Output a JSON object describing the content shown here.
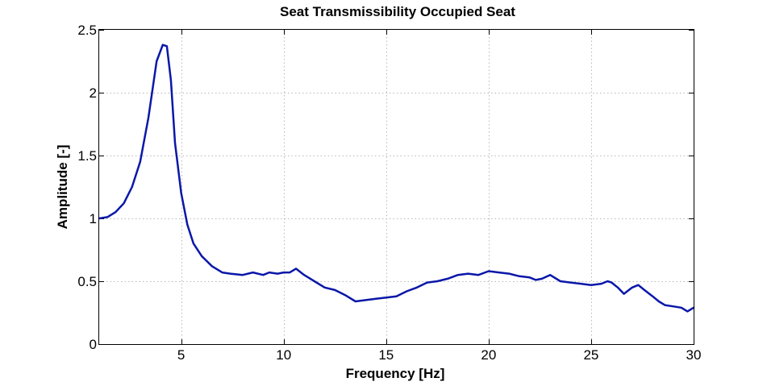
{
  "chart_data": {
    "type": "line",
    "title": "Seat Transmissibility Occupied Seat",
    "xlabel": "Frequency [Hz]",
    "ylabel": "Amplitude [-]",
    "xlim": [
      1,
      30
    ],
    "ylim": [
      0,
      2.5
    ],
    "xticks": [
      5,
      10,
      15,
      20,
      25,
      30
    ],
    "xtick_labels": [
      "5",
      "10",
      "15",
      "20",
      "25",
      "30"
    ],
    "yticks": [
      0,
      0.5,
      1,
      1.5,
      2,
      2.5
    ],
    "ytick_labels": [
      "0",
      "0.5",
      "1",
      "1.5",
      "2",
      "2.5"
    ],
    "grid": true,
    "legend": "none",
    "series": [
      {
        "color": "#0a17a8",
        "x": [
          1.0,
          1.4,
          1.8,
          2.2,
          2.6,
          3.0,
          3.4,
          3.8,
          4.1,
          4.3,
          4.5,
          4.7,
          5.0,
          5.3,
          5.6,
          6.0,
          6.5,
          7.0,
          7.4,
          8.0,
          8.5,
          9.0,
          9.3,
          9.7,
          10.0,
          10.3,
          10.6,
          11.0,
          11.5,
          12.0,
          12.5,
          13.0,
          13.5,
          14.0,
          14.5,
          15.0,
          15.5,
          16.0,
          16.5,
          17.0,
          17.5,
          18.0,
          18.5,
          19.0,
          19.5,
          20.0,
          20.5,
          21.0,
          21.5,
          22.0,
          22.3,
          22.6,
          23.0,
          23.5,
          24.0,
          24.5,
          25.0,
          25.5,
          25.8,
          26.0,
          26.3,
          26.6,
          27.0,
          27.3,
          27.6,
          28.0,
          28.3,
          28.6,
          29.0,
          29.4,
          29.7,
          30.0
        ],
        "y": [
          1.0,
          1.01,
          1.05,
          1.12,
          1.25,
          1.45,
          1.8,
          2.25,
          2.38,
          2.37,
          2.1,
          1.6,
          1.2,
          0.95,
          0.8,
          0.7,
          0.62,
          0.57,
          0.56,
          0.55,
          0.57,
          0.55,
          0.57,
          0.56,
          0.57,
          0.57,
          0.6,
          0.55,
          0.5,
          0.45,
          0.43,
          0.39,
          0.34,
          0.35,
          0.36,
          0.37,
          0.38,
          0.42,
          0.45,
          0.49,
          0.5,
          0.52,
          0.55,
          0.56,
          0.55,
          0.58,
          0.57,
          0.56,
          0.54,
          0.53,
          0.51,
          0.52,
          0.55,
          0.5,
          0.49,
          0.48,
          0.47,
          0.48,
          0.5,
          0.49,
          0.45,
          0.4,
          0.45,
          0.47,
          0.43,
          0.38,
          0.34,
          0.31,
          0.3,
          0.29,
          0.26,
          0.29
        ]
      }
    ]
  }
}
